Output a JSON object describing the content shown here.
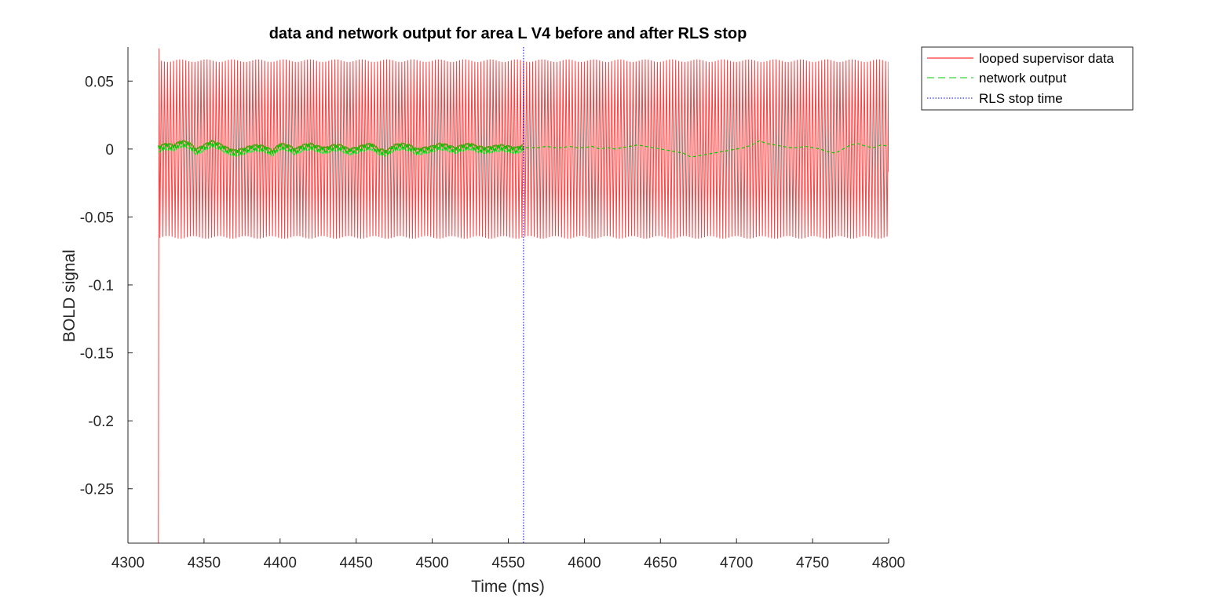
{
  "chart_data": {
    "type": "line",
    "title": "data and network output for area L V4 before and after RLS stop",
    "xlabel": "Time (ms)",
    "ylabel": "BOLD signal",
    "xlim": [
      4300,
      4800
    ],
    "ylim": [
      -0.29,
      0.075
    ],
    "xticks": [
      4300,
      4350,
      4400,
      4450,
      4500,
      4550,
      4600,
      4650,
      4700,
      4750,
      4800
    ],
    "xtick_labels": [
      "4300",
      "4350",
      "4400",
      "4450",
      "4500",
      "4550",
      "4600",
      "4650",
      "4700",
      "4750",
      "4800"
    ],
    "yticks": [
      0.05,
      0,
      -0.05,
      -0.1,
      -0.15,
      -0.2,
      -0.25
    ],
    "ytick_labels": [
      "0.05",
      "0",
      "-0.05",
      "-0.1",
      "-0.15",
      "-0.2",
      "-0.25"
    ],
    "grid": false,
    "legend_position": "outside-top-right",
    "series": [
      {
        "name": "looped supervisor data",
        "color": "#ff0000",
        "style": "solid",
        "x_start": 4320,
        "x_end": 4800,
        "initial_min": -0.29,
        "amplitude": 0.066,
        "period_ms": 2
      },
      {
        "name": "network output",
        "color": "#00cc00",
        "style": "dashed",
        "x": [
          4320,
          4325,
          4330,
          4335,
          4340,
          4345,
          4350,
          4355,
          4360,
          4365,
          4370,
          4375,
          4380,
          4385,
          4390,
          4395,
          4400,
          4405,
          4410,
          4415,
          4420,
          4425,
          4430,
          4435,
          4440,
          4445,
          4450,
          4455,
          4460,
          4465,
          4470,
          4475,
          4480,
          4485,
          4490,
          4495,
          4500,
          4505,
          4510,
          4515,
          4520,
          4525,
          4530,
          4535,
          4540,
          4545,
          4550,
          4555,
          4560,
          4565,
          4570,
          4575,
          4580,
          4585,
          4590,
          4595,
          4600,
          4605,
          4610,
          4615,
          4620,
          4625,
          4630,
          4635,
          4640,
          4645,
          4650,
          4655,
          4660,
          4665,
          4670,
          4675,
          4680,
          4685,
          4690,
          4695,
          4700,
          4705,
          4710,
          4715,
          4720,
          4725,
          4730,
          4735,
          4740,
          4745,
          4750,
          4755,
          4760,
          4765,
          4770,
          4775,
          4780,
          4785,
          4790,
          4795,
          4800
        ],
        "y": [
          0,
          0.002,
          0.001,
          0.004,
          0.003,
          -0.002,
          0.001,
          0.004,
          0.002,
          -0.001,
          -0.003,
          -0.002,
          0,
          0.001,
          0,
          -0.003,
          0.002,
          0.001,
          -0.002,
          0.001,
          0.002,
          0,
          -0.001,
          0.001,
          0.001,
          -0.002,
          -0.001,
          0.001,
          0.002,
          -0.002,
          -0.003,
          0.001,
          0.002,
          0.001,
          -0.002,
          -0.001,
          0,
          0.002,
          0.001,
          -0.001,
          0.001,
          0.002,
          0,
          -0.001,
          0,
          0.001,
          0,
          -0.001,
          0.001,
          0.001,
          0.001,
          0.002,
          0.001,
          0.001,
          0.002,
          0.001,
          0.001,
          0.002,
          0,
          0.001,
          0,
          0.001,
          0.002,
          0.003,
          0.002,
          0.001,
          0,
          -0.001,
          -0.002,
          -0.003,
          -0.006,
          -0.005,
          -0.004,
          -0.003,
          -0.002,
          -0.001,
          0,
          0.001,
          0.003,
          0.006,
          0.004,
          0.003,
          0.002,
          0.001,
          0.001,
          0.002,
          0.001,
          0,
          -0.002,
          -0.003,
          0,
          0.003,
          0.004,
          0.002,
          0.001,
          0.003,
          0.002
        ],
        "jitter_until": 4560
      },
      {
        "name": "RLS stop time",
        "color": "#0000ff",
        "style": "dotted",
        "x_value": 4560
      }
    ]
  }
}
